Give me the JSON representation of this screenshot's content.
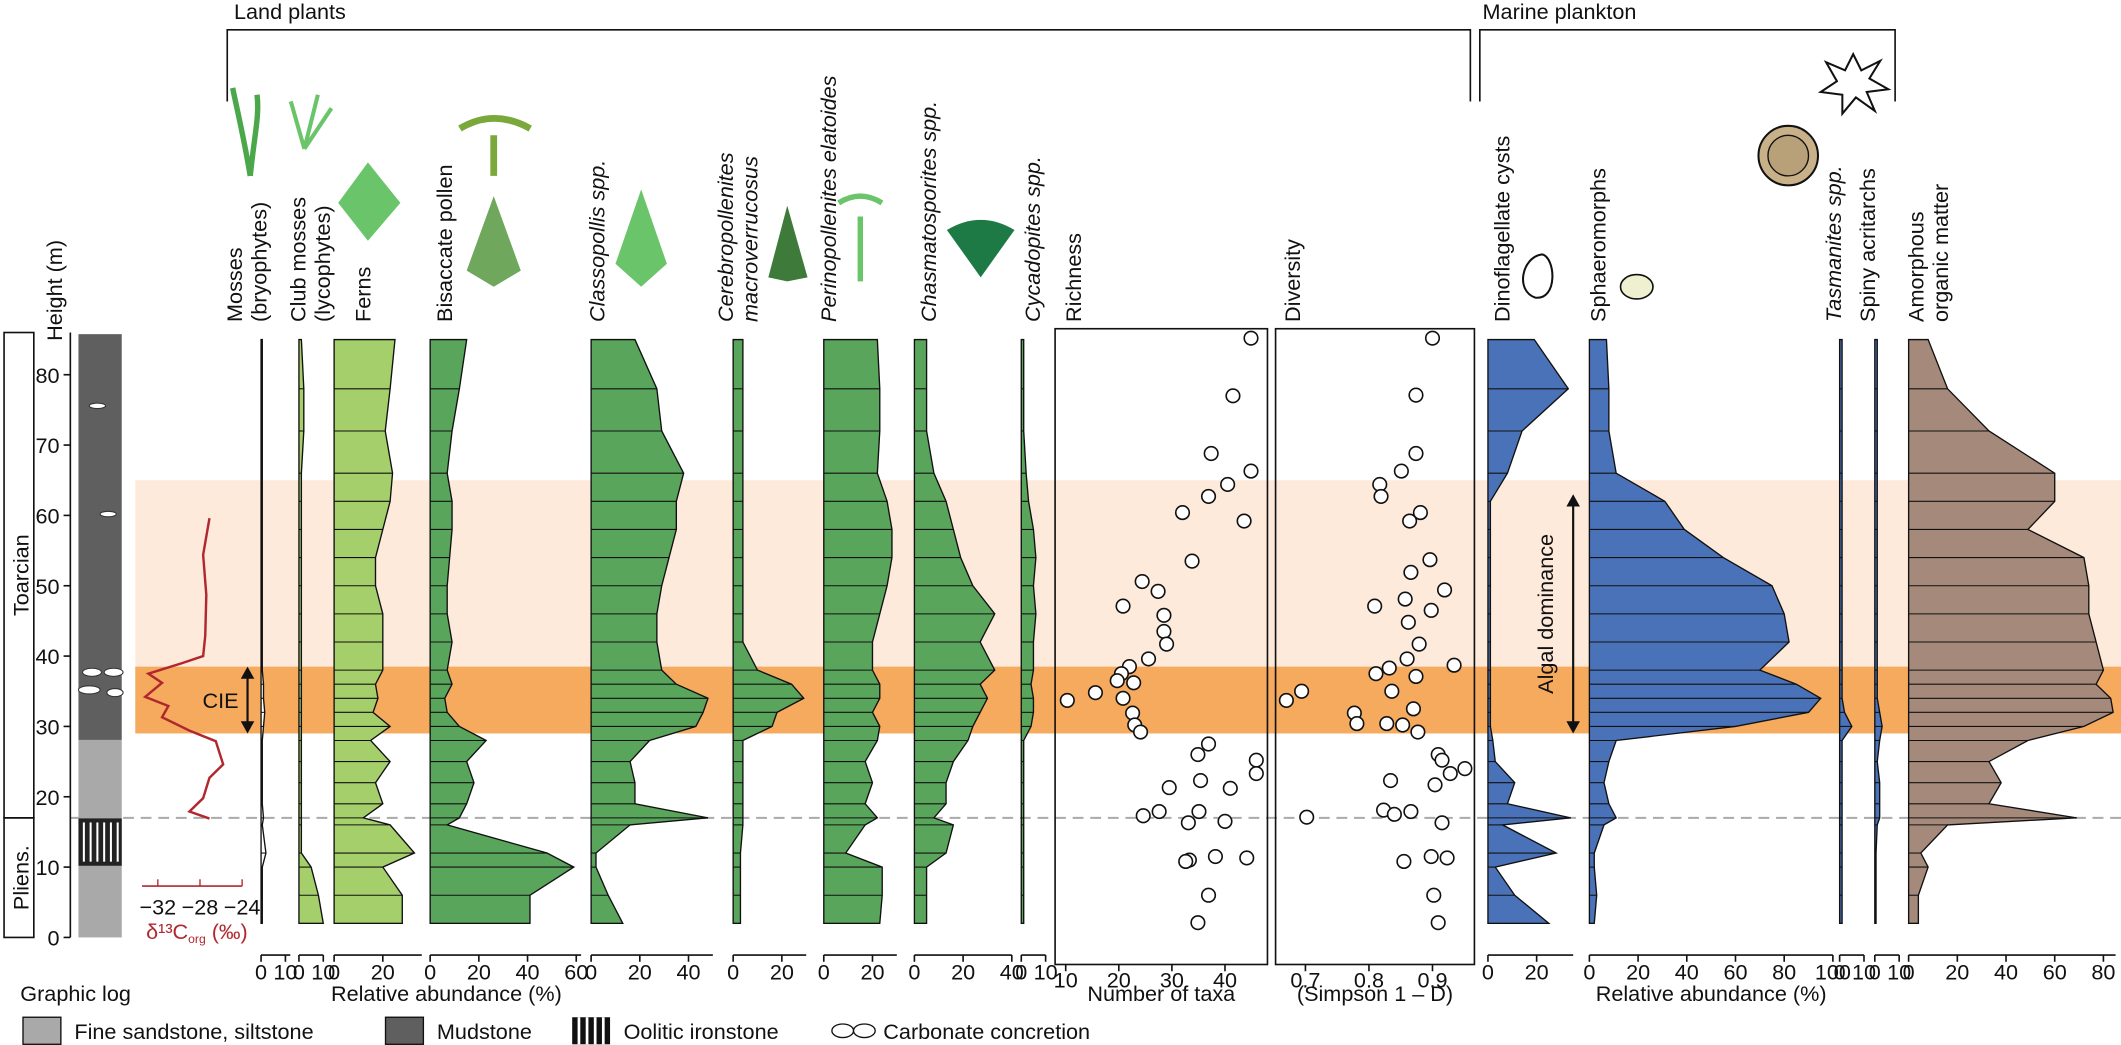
{
  "chart_data": {
    "type": "stratigraphic",
    "y_label": "Height (m)",
    "ylim": [
      0,
      86
    ],
    "yticks": [
      0,
      10,
      20,
      30,
      40,
      50,
      60,
      70,
      80
    ],
    "groups": [
      {
        "name": "Land plants",
        "x_label": "Relative abundance (%)"
      },
      {
        "name": "Marine plankton",
        "x_label": "Relative abundance (%)"
      }
    ],
    "stages": [
      {
        "name": "Toarcian",
        "from": 17,
        "to": 86
      },
      {
        "name": "Pliens.",
        "from": 0,
        "to": 17
      }
    ],
    "bands": [
      {
        "from": 38.5,
        "to": 65,
        "color": "#fdeadb"
      },
      {
        "from": 29,
        "to": 38.5,
        "color": "#f5aa5e"
      }
    ],
    "boundary": 17,
    "annotations": [
      {
        "text": "CIE",
        "from": 29,
        "to": 38.5
      },
      {
        "text": "Algal dominance",
        "from": 29,
        "to": 63
      }
    ],
    "heights": [
      2,
      6,
      10,
      12,
      16,
      17,
      19,
      22,
      25,
      28,
      30,
      32,
      34,
      36,
      38,
      42,
      46,
      50,
      54,
      58,
      62,
      66,
      72,
      78,
      85
    ],
    "panels": [
      {
        "label": [
          "Mosses",
          "(bryophytes)"
        ],
        "italic": false,
        "color": "#ffffff",
        "xlim": [
          0,
          12
        ],
        "xticks": [
          0,
          10
        ],
        "values": [
          0.5,
          0.5,
          0.5,
          2,
          0.5,
          1,
          0.5,
          0.5,
          0.5,
          0.5,
          1,
          1.5,
          1,
          1,
          0.5,
          0.5,
          0.5,
          0.5,
          0.5,
          0.5,
          0.5,
          0.5,
          0.5,
          0.5,
          0.5
        ]
      },
      {
        "label": [
          "Club mosses",
          "(lycophytes)"
        ],
        "italic": false,
        "color": "#a5cf6a",
        "xlim": [
          0,
          10
        ],
        "xticks": [
          0,
          10
        ],
        "values": [
          10,
          8,
          5,
          1,
          1,
          1,
          1,
          1,
          1,
          1,
          1,
          1,
          1,
          1,
          1,
          1,
          1,
          1,
          1,
          1,
          1,
          1,
          2,
          2,
          1
        ]
      },
      {
        "label": [
          "Ferns"
        ],
        "italic": false,
        "color": "#a5cf6a",
        "xlim": [
          0,
          36
        ],
        "xticks": [
          0,
          20
        ],
        "values": [
          28,
          28,
          20,
          33,
          23,
          12,
          20,
          17,
          23,
          15,
          23,
          16,
          18,
          17,
          20,
          20,
          20,
          17,
          17,
          20,
          23,
          24,
          21,
          23,
          25
        ]
      },
      {
        "label": [
          "Bisaccate pollen"
        ],
        "italic": false,
        "color": "#5aa55c",
        "xlim": [
          0,
          62
        ],
        "xticks": [
          0,
          20,
          40,
          60
        ],
        "values": [
          41,
          41,
          59,
          48,
          7,
          12,
          15,
          18,
          15,
          23,
          12,
          7,
          6,
          9,
          7,
          9,
          7,
          7,
          8,
          9,
          9,
          7,
          9,
          12,
          15
        ]
      },
      {
        "label": [
          "Classopollis spp."
        ],
        "italic": true,
        "color": "#5aa55c",
        "xlim": [
          0,
          50
        ],
        "xticks": [
          0,
          20,
          40
        ],
        "values": [
          13,
          7,
          2,
          2,
          16,
          48,
          18,
          18,
          16,
          24,
          43,
          46,
          48,
          35,
          29,
          27,
          27,
          29,
          32,
          35,
          35,
          38,
          29,
          27,
          18
        ]
      },
      {
        "label": [
          "Cerebropollenites",
          "macroverrucosus"
        ],
        "italic": true,
        "color": "#5aa55c",
        "xlim": [
          0,
          30
        ],
        "xticks": [
          0,
          20
        ],
        "values": [
          3,
          3,
          3,
          3,
          4,
          4,
          4,
          4,
          4,
          4,
          16,
          18,
          29,
          24,
          10,
          4,
          4,
          4,
          4,
          4,
          4,
          4,
          4,
          4,
          4
        ]
      },
      {
        "label": [
          "Perinopollenites elatoides"
        ],
        "italic": true,
        "color": "#5aa55c",
        "xlim": [
          0,
          30
        ],
        "xticks": [
          0,
          20
        ],
        "values": [
          23,
          24,
          24,
          9,
          17,
          22,
          17,
          20,
          17,
          22,
          23,
          20,
          23,
          23,
          20,
          20,
          23,
          26,
          28,
          28,
          26,
          22,
          23,
          23,
          22
        ]
      },
      {
        "label": [
          "Chasmatosporites spp."
        ],
        "italic": true,
        "color": "#5aa55c",
        "xlim": [
          0,
          40
        ],
        "xticks": [
          0,
          20,
          40
        ],
        "values": [
          5,
          5,
          5,
          13,
          16,
          8,
          13,
          13,
          16,
          22,
          24,
          27,
          30,
          27,
          33,
          27,
          33,
          24,
          19,
          16,
          13,
          8,
          5,
          5,
          5
        ]
      },
      {
        "label": [
          "Cycadopites spp."
        ],
        "italic": true,
        "color": "#5aa55c",
        "xlim": [
          0,
          10
        ],
        "xticks": [
          0,
          10
        ],
        "values": [
          1,
          1,
          1,
          1,
          1,
          1,
          1,
          1,
          1,
          1,
          4,
          5,
          5,
          4,
          5,
          5,
          6,
          5,
          6,
          5,
          3,
          2,
          1,
          1,
          1
        ]
      },
      {
        "label": [
          "Dinoflagellate cysts"
        ],
        "italic": false,
        "color": "#4a72b8",
        "xlim": [
          0,
          35
        ],
        "xticks": [
          0,
          20
        ],
        "values": [
          25,
          11,
          3,
          28,
          6,
          34,
          8,
          11,
          3,
          2,
          1,
          1,
          1,
          1,
          1,
          1,
          1,
          1,
          1,
          1,
          1,
          8,
          14,
          33,
          19
        ]
      },
      {
        "label": [
          "Sphaeromorphs"
        ],
        "italic": false,
        "color": "#4a72b8",
        "xlim": [
          0,
          100
        ],
        "xticks": [
          0,
          20,
          40,
          60,
          80,
          100
        ],
        "values": [
          2,
          3,
          2,
          2,
          6,
          11,
          8,
          6,
          8,
          11,
          60,
          90,
          95,
          85,
          70,
          82,
          80,
          75,
          55,
          39,
          31,
          11,
          8,
          8,
          7
        ]
      },
      {
        "label": [
          "Tasmanites spp."
        ],
        "italic": true,
        "color": "#4a72b8",
        "xlim": [
          0,
          10
        ],
        "xticks": [
          0,
          10
        ],
        "values": [
          1,
          1,
          1,
          1,
          1,
          1,
          1,
          1,
          1,
          1,
          5,
          2,
          1,
          1,
          1,
          1,
          1,
          1,
          1,
          1,
          1,
          1,
          1,
          1,
          1
        ]
      },
      {
        "label": [
          "Spiny acritarchs"
        ],
        "italic": false,
        "color": "#4a72b8",
        "xlim": [
          0,
          10
        ],
        "xticks": [
          0,
          10
        ],
        "values": [
          0.5,
          0.5,
          0.5,
          0.5,
          1,
          2,
          2,
          2,
          1,
          2,
          3,
          2,
          1,
          1,
          1,
          1,
          1,
          1,
          1,
          1,
          1,
          1,
          1,
          1,
          1
        ]
      },
      {
        "label": [
          "Amorphous",
          "organic matter"
        ],
        "italic": false,
        "color": "#a58a7b",
        "xlim": [
          0,
          85
        ],
        "xticks": [
          0,
          20,
          40,
          60,
          80
        ],
        "values": [
          4,
          4,
          8,
          5,
          16,
          69,
          33,
          38,
          33,
          49,
          72,
          84,
          83,
          77,
          80,
          77,
          74,
          74,
          72,
          49,
          60,
          60,
          33,
          16,
          8
        ]
      }
    ],
    "scatter": [
      {
        "label": [
          "Richness"
        ],
        "x_label": "Number of taxa",
        "xlim": [
          8,
          48
        ],
        "xticks": [
          10,
          20,
          30,
          40
        ],
        "x": [
          44.9,
          41.5,
          37.4,
          44.9,
          40.5,
          36.9,
          32,
          43.6,
          33.8,
          24.4,
          27.4,
          20.8,
          28.5,
          28.5,
          29,
          25.6,
          22,
          20.5,
          19.7,
          22.8,
          15.6,
          10.3,
          20.8,
          22.6,
          23,
          24.1,
          36.9,
          34.9,
          45.9,
          45.9,
          35.4,
          29.5,
          41,
          35.1,
          27.6,
          24.6,
          40,
          33.1,
          38.2,
          33.3,
          44.1,
          32.6,
          36.9,
          34.9
        ],
        "y": [
          85.2,
          77,
          68.8,
          66.3,
          64.4,
          62.7,
          60.4,
          59.2,
          53.5,
          50.6,
          49.2,
          47.1,
          45.8,
          43.5,
          41.7,
          39.6,
          38.5,
          37.5,
          36.5,
          36.2,
          34.8,
          33.7,
          34,
          31.9,
          30.2,
          29.2,
          27.5,
          26,
          25.2,
          23.3,
          22.3,
          21.3,
          21.2,
          17.9,
          17.9,
          17.3,
          16.5,
          16.3,
          11.5,
          11,
          11.3,
          10.8,
          6,
          2.1
        ]
      },
      {
        "label": [
          "Diversity"
        ],
        "x_label": "(Simpson 1 – D)",
        "xlim": [
          0.653,
          0.966
        ],
        "xticks": [
          0.7,
          0.8,
          0.9
        ],
        "x": [
          0.9,
          0.874,
          0.874,
          0.851,
          0.817,
          0.819,
          0.881,
          0.864,
          0.896,
          0.866,
          0.919,
          0.857,
          0.809,
          0.898,
          0.862,
          0.879,
          0.86,
          0.934,
          0.832,
          0.811,
          0.874,
          0.694,
          0.836,
          0.67,
          0.777,
          0.87,
          0.853,
          0.828,
          0.877,
          0.781,
          0.909,
          0.915,
          0.951,
          0.928,
          0.834,
          0.904,
          0.823,
          0.702,
          0.866,
          0.84,
          0.915,
          0.898,
          0.855,
          0.923,
          0.902,
          0.909
        ],
        "y": [
          85.2,
          77.1,
          68.8,
          66.3,
          64.4,
          62.7,
          60.4,
          59.2,
          53.7,
          51.9,
          49.4,
          48.1,
          47.1,
          46.5,
          44.8,
          41.7,
          39.6,
          38.7,
          38.3,
          37.5,
          37.1,
          35,
          35,
          33.7,
          31.9,
          32.5,
          30.2,
          30.4,
          29.2,
          30.4,
          26,
          25.2,
          24,
          23.3,
          22.3,
          21.7,
          18.1,
          17.1,
          17.9,
          17.5,
          16.3,
          11.5,
          10.8,
          11.3,
          6,
          2.1
        ]
      }
    ],
    "isotope": {
      "x_label": "δ¹³C",
      "x_label_sub": "org",
      "x_label_unit": " (‰)",
      "color": "#b0282e",
      "xlim": [
        -33.5,
        -24
      ],
      "xticks": [
        {
          "value": -32,
          "label": "−32"
        },
        {
          "value": -28,
          "label": "−28"
        },
        {
          "value": -24,
          "label": "−24"
        }
      ],
      "x": [
        -27.1,
        -27.7,
        -27.4,
        -27.5,
        -27.7,
        -29.7,
        -32.9,
        -31.6,
        -33.2,
        -31,
        -31.6,
        -29,
        -26.5,
        -25.8,
        -27.1,
        -27.7,
        -29,
        -27.1
      ],
      "y": [
        59.6,
        54.4,
        48.7,
        42.9,
        40,
        39,
        37.5,
        36.2,
        34.2,
        32.9,
        31.3,
        29.4,
        27.9,
        24.6,
        22.7,
        19.8,
        17.9,
        16.9
      ]
    },
    "legend": {
      "title": "Graphic log",
      "items": [
        {
          "name": "Fine sandstone, siltstone"
        },
        {
          "name": "Mudstone"
        },
        {
          "name": "Oolitic ironstone"
        },
        {
          "name": "Carbonate concretion"
        }
      ]
    }
  }
}
